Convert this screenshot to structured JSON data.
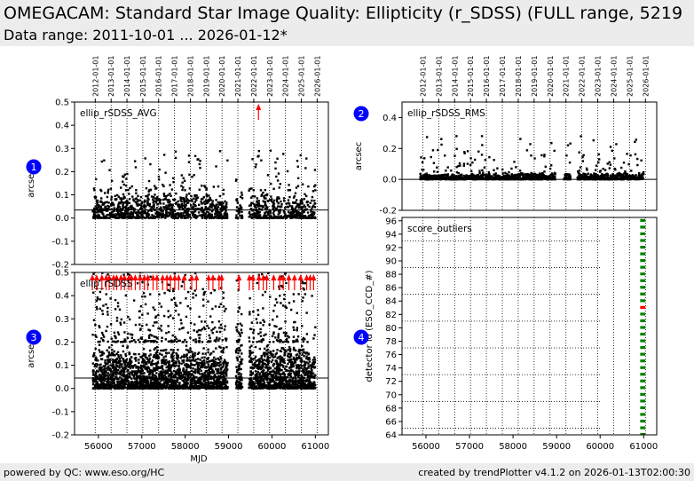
{
  "header": {
    "title": "OMEGACAM: Standard Star Image Quality: Ellipticity (r_SDSS) (FULL range, 5219",
    "subtitle": "Data range: 2011-10-01 ... 2026-01-12*"
  },
  "footer": {
    "left": "powered by QC: www.eso.org/HC",
    "right": "created by trendPlotter v4.1.2 on 2026-01-13T02:00:30"
  },
  "colors": {
    "points": "#000000",
    "outlier_arrows": "#ff0000",
    "score_green": "#008000",
    "score_red": "#ff0000",
    "badge": "#0000ff",
    "header_bg": "#ececec"
  },
  "date_ticks": {
    "labels": [
      "2012-01-01",
      "2013-01-01",
      "2014-01-01",
      "2015-01-01",
      "2016-01-01",
      "2017-01-01",
      "2018-01-01",
      "2019-01-01",
      "2020-01-01",
      "2021-01-01",
      "2022-01-01",
      "2023-01-01",
      "2024-01-01",
      "2025-01-01",
      "2026-01-01"
    ],
    "mjd": [
      55927,
      56293,
      56658,
      57023,
      57388,
      57754,
      58119,
      58484,
      58849,
      59215,
      59580,
      59945,
      60310,
      60676,
      61041
    ]
  },
  "chart_data": [
    {
      "id": 1,
      "type": "scatter",
      "panel_label": "ellip_rSDSS_AVG",
      "ylabel": "arcsec",
      "xlabel": "",
      "xlim": [
        55450,
        61300
      ],
      "ylim": [
        -0.2,
        0.5
      ],
      "yticks": [
        -0.2,
        -0.1,
        0.0,
        0.1,
        0.2,
        0.3,
        0.4,
        0.5
      ],
      "ytick_labels": [
        "-0.2",
        "-0.1",
        "0.0",
        "0.1",
        "0.2",
        "0.3",
        "0.4",
        "0.5"
      ],
      "show_xticks": false,
      "reference_line": 0.035,
      "observing_gaps": [
        [
          58980,
          59170
        ],
        [
          59320,
          59470
        ]
      ],
      "bulk_range": [
        0.0,
        0.12
      ],
      "typical_max": 0.3,
      "outlier_arrows_mjd": [
        59690
      ]
    },
    {
      "id": 2,
      "type": "scatter",
      "panel_label": "ellip_rSDSS_RMS",
      "ylabel": "arcsec",
      "xlabel": "",
      "xlim": [
        55450,
        61300
      ],
      "ylim": [
        -0.2,
        0.5
      ],
      "yticks": [
        -0.2,
        0.0,
        0.2,
        0.4
      ],
      "ytick_labels": [
        "-0.2",
        "0.0",
        "0.2",
        "0.4"
      ],
      "show_xticks": false,
      "reference_line": 0.0,
      "observing_gaps": [
        [
          58980,
          59170
        ],
        [
          59320,
          59470
        ]
      ],
      "bulk_range": [
        0.0,
        0.04
      ],
      "typical_max": 0.28,
      "outlier_arrows_mjd": []
    },
    {
      "id": 3,
      "type": "scatter",
      "panel_label": "ellip_rSDSS",
      "ylabel": "arcsec",
      "xlabel": "MJD",
      "xlim": [
        55450,
        61300
      ],
      "ylim": [
        -0.2,
        0.5
      ],
      "yticks": [
        -0.2,
        -0.1,
        0.0,
        0.1,
        0.2,
        0.3,
        0.4,
        0.5
      ],
      "ytick_labels": [
        "-0.2",
        "-0.1",
        "0.0",
        "0.1",
        "0.2",
        "0.3",
        "0.4",
        "0.5"
      ],
      "xticks": [
        56000,
        57000,
        58000,
        59000,
        60000,
        61000
      ],
      "xtick_labels": [
        "56000",
        "57000",
        "58000",
        "59000",
        "60000",
        "61000"
      ],
      "show_xticks": true,
      "reference_line": 0.045,
      "observing_gaps": [
        [
          58980,
          59170
        ],
        [
          59320,
          59470
        ]
      ],
      "bulk_range": [
        0.0,
        0.2
      ],
      "typical_max": 0.5,
      "outlier_arrows_mjd": [
        55860,
        55960,
        56080,
        56180,
        56250,
        56350,
        56420,
        56520,
        56600,
        56700,
        56760,
        56850,
        56960,
        57060,
        57140,
        57260,
        57350,
        57480,
        57580,
        57660,
        57760,
        57850,
        57980,
        58150,
        58260,
        58540,
        58640,
        58780,
        58840,
        59240,
        59480,
        59560,
        59700,
        59800,
        59880,
        60040,
        60180,
        60260,
        60390,
        60520,
        60660,
        60800,
        60880,
        60960
      ]
    },
    {
      "id": 4,
      "type": "scatter",
      "panel_label": "score_outliers",
      "ylabel": "detector id (ESO_CCD_#)",
      "xlabel": "",
      "xlim": [
        55450,
        61300
      ],
      "ylim": [
        64,
        96.5
      ],
      "yticks": [
        64,
        66,
        68,
        70,
        72,
        74,
        76,
        78,
        80,
        82,
        84,
        86,
        88,
        90,
        92,
        94,
        96
      ],
      "ytick_labels": [
        "64",
        "66",
        "68",
        "70",
        "72",
        "74",
        "76",
        "78",
        "80",
        "82",
        "84",
        "86",
        "88",
        "90",
        "92",
        "94",
        "96"
      ],
      "xticks": [
        56000,
        57000,
        58000,
        59000,
        60000,
        61000
      ],
      "xtick_labels": [
        "56000",
        "57000",
        "58000",
        "59000",
        "60000",
        "61000"
      ],
      "show_xticks": true,
      "score_x_range": [
        60920,
        61040
      ],
      "score_red_detectors": [
        83
      ]
    }
  ]
}
